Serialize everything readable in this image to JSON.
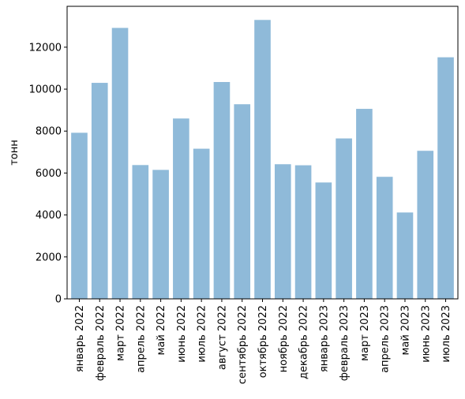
{
  "chart_data": {
    "type": "bar",
    "title": "",
    "xlabel": "",
    "ylabel": "тонн",
    "categories": [
      "январь 2022",
      "февраль 2022",
      "март 2022",
      "апрель 2022",
      "май 2022",
      "июнь 2022",
      "июль 2022",
      "август 2022",
      "сентябрь 2022",
      "октябрь 2022",
      "ноябрь 2022",
      "декабрь 2022",
      "январь 2023",
      "февраль 2023",
      "март 2023",
      "апрель 2023",
      "май 2023",
      "июнь 2023",
      "июль 2023"
    ],
    "values": [
      7920,
      10300,
      12920,
      6380,
      6150,
      8600,
      7160,
      10340,
      9280,
      13300,
      6420,
      6370,
      5550,
      7650,
      9060,
      5820,
      4120,
      7060,
      11520
    ],
    "ylim": [
      0,
      13950
    ],
    "yticks": [
      0,
      2000,
      4000,
      6000,
      8000,
      10000,
      12000
    ],
    "grid": false,
    "bar_color": "#8fbad9",
    "axis_color": "#000000"
  }
}
